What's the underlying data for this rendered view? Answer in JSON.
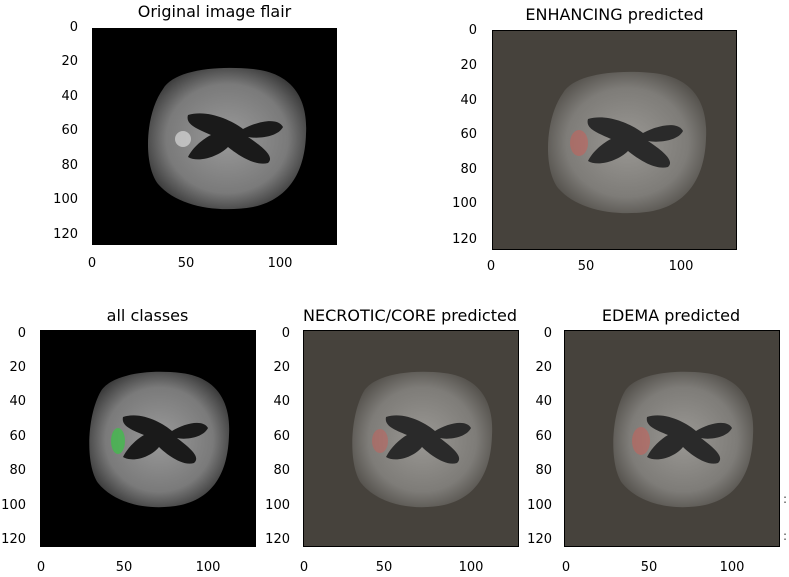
{
  "panels": [
    {
      "title": "Original image flair",
      "bg": "#000000",
      "overlay": "none"
    },
    {
      "title": "ENHANCING predicted",
      "bg": "#46423c",
      "overlay": "red"
    },
    {
      "title": "all classes",
      "bg": "#000000",
      "overlay": "green"
    },
    {
      "title": "NECROTIC/CORE predicted",
      "bg": "#46423c",
      "overlay": "red"
    },
    {
      "title": "EDEMA predicted",
      "bg": "#46423c",
      "overlay": "red"
    }
  ],
  "y_ticks": [
    "0",
    "20",
    "40",
    "60",
    "80",
    "100",
    "120"
  ],
  "x_ticks": [
    "0",
    "50",
    "100"
  ],
  "axis_range": {
    "x": [
      0,
      128
    ],
    "y": [
      0,
      128
    ]
  },
  "edge_marks": [
    ":",
    ":"
  ]
}
